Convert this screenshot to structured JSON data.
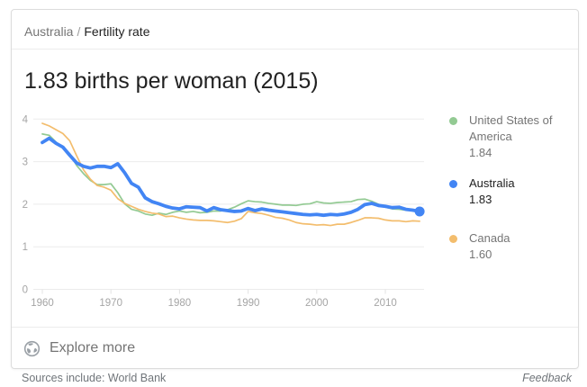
{
  "card": {
    "breadcrumb": {
      "parent": "Australia",
      "separator": "/",
      "current": "Fertility rate"
    },
    "title": "1.83 births per woman (2015)",
    "explore_more": "Explore more"
  },
  "footer": {
    "sources": "Sources include: World Bank",
    "feedback": "Feedback"
  },
  "colors": {
    "australia_line": "#4285f4",
    "united_states_line": "#93ca93",
    "canada_line": "#f3bd6d",
    "gridline": "#ebebeb",
    "axis_text": "#a5a5a5",
    "muted_text": "#757575",
    "dark_text": "#212121"
  },
  "chart_data": {
    "type": "line",
    "title": "1.83 births per woman (2015)",
    "xlabel": "",
    "ylabel": "",
    "xlim": [
      1960,
      2016
    ],
    "ylim": [
      0,
      4.3
    ],
    "xticks": [
      1960,
      1970,
      1980,
      1990,
      2000,
      2010
    ],
    "yticks": [
      0,
      1,
      2,
      3,
      4
    ],
    "grid": "horizontal",
    "legend_position": "right",
    "years": [
      1960,
      1961,
      1962,
      1963,
      1964,
      1965,
      1966,
      1967,
      1968,
      1969,
      1970,
      1971,
      1972,
      1973,
      1974,
      1975,
      1976,
      1977,
      1978,
      1979,
      1980,
      1981,
      1982,
      1983,
      1984,
      1985,
      1986,
      1987,
      1988,
      1989,
      1990,
      1991,
      1992,
      1993,
      1994,
      1995,
      1996,
      1997,
      1998,
      1999,
      2000,
      2001,
      2002,
      2003,
      2004,
      2005,
      2006,
      2007,
      2008,
      2009,
      2010,
      2011,
      2012,
      2013,
      2014,
      2015
    ],
    "series": [
      {
        "name": "United States of America",
        "current_value": "1.84",
        "color": "#93ca93",
        "highlight": false,
        "values": [
          3.65,
          3.62,
          3.46,
          3.32,
          3.19,
          2.91,
          2.72,
          2.56,
          2.46,
          2.46,
          2.48,
          2.27,
          2.01,
          1.88,
          1.84,
          1.77,
          1.74,
          1.79,
          1.76,
          1.81,
          1.84,
          1.81,
          1.83,
          1.8,
          1.81,
          1.84,
          1.84,
          1.87,
          1.93,
          2.01,
          2.08,
          2.06,
          2.05,
          2.02,
          2.0,
          1.98,
          1.98,
          1.97,
          2.0,
          2.01,
          2.06,
          2.03,
          2.02,
          2.04,
          2.05,
          2.06,
          2.11,
          2.12,
          2.07,
          2.0,
          1.93,
          1.89,
          1.88,
          1.86,
          1.86,
          1.84
        ]
      },
      {
        "name": "Australia",
        "current_value": "1.83",
        "color": "#4285f4",
        "highlight": true,
        "values": [
          3.45,
          3.55,
          3.43,
          3.34,
          3.15,
          2.97,
          2.89,
          2.85,
          2.89,
          2.89,
          2.86,
          2.95,
          2.74,
          2.49,
          2.4,
          2.15,
          2.06,
          2.01,
          1.95,
          1.91,
          1.89,
          1.94,
          1.93,
          1.92,
          1.84,
          1.92,
          1.87,
          1.85,
          1.83,
          1.84,
          1.9,
          1.85,
          1.89,
          1.86,
          1.84,
          1.82,
          1.8,
          1.78,
          1.76,
          1.75,
          1.76,
          1.74,
          1.76,
          1.75,
          1.77,
          1.81,
          1.88,
          1.99,
          2.02,
          1.97,
          1.95,
          1.92,
          1.93,
          1.88,
          1.86,
          1.83
        ]
      },
      {
        "name": "Canada",
        "current_value": "1.60",
        "color": "#f3bd6d",
        "highlight": false,
        "values": [
          3.9,
          3.84,
          3.75,
          3.66,
          3.49,
          3.14,
          2.81,
          2.59,
          2.44,
          2.4,
          2.33,
          2.13,
          2.02,
          1.95,
          1.88,
          1.83,
          1.79,
          1.77,
          1.71,
          1.72,
          1.68,
          1.65,
          1.63,
          1.62,
          1.62,
          1.61,
          1.59,
          1.57,
          1.6,
          1.66,
          1.83,
          1.8,
          1.78,
          1.74,
          1.69,
          1.67,
          1.63,
          1.57,
          1.54,
          1.53,
          1.51,
          1.52,
          1.5,
          1.53,
          1.53,
          1.57,
          1.62,
          1.68,
          1.68,
          1.67,
          1.63,
          1.61,
          1.61,
          1.59,
          1.61,
          1.6
        ]
      }
    ]
  }
}
